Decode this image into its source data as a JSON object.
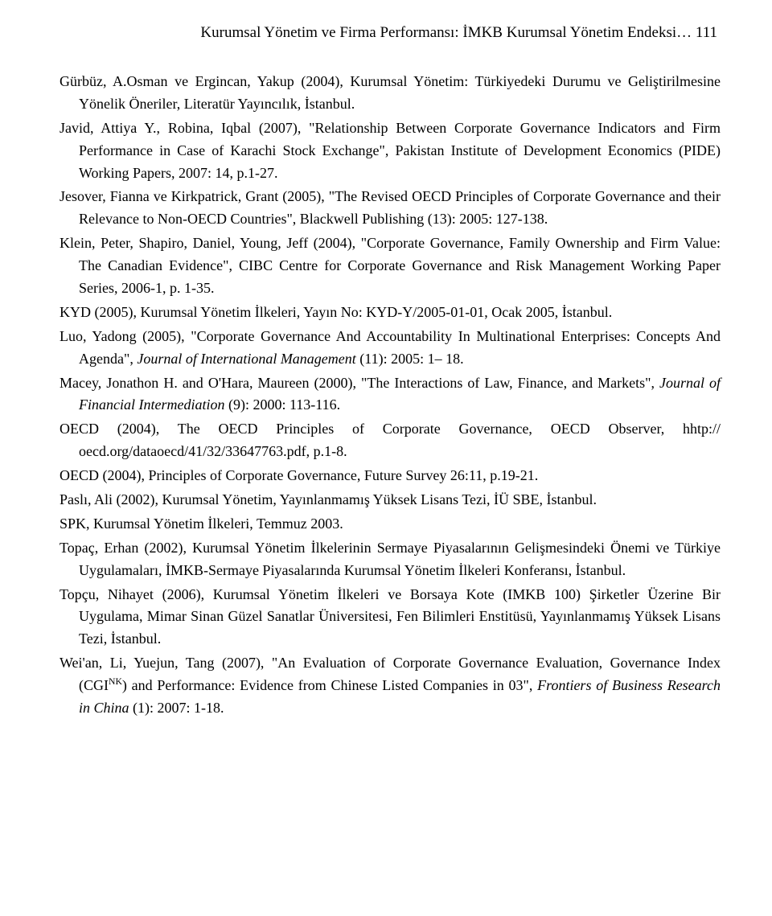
{
  "header": "Kurumsal Yönetim ve Firma Performansı: İMKB Kurumsal Yönetim Endeksi… 111",
  "refs": [
    {
      "pre": "Gürbüz, A.Osman ve Ergincan, Yakup (2004), Kurumsal Yönetim: Türkiyedeki Durumu ve Geliştirilmesine Yönelik Öneriler, Literatür Yayıncılık, İstanbul."
    },
    {
      "pre": "Javid, Attiya Y., Robina, Iqbal (2007), \"Relationship Between Corporate Governance Indicators and Firm Performance in Case of Karachi Stock Exchange\", Pakistan Institute of Development Economics (PIDE) Working Papers, 2007: 14, p.1-27."
    },
    {
      "pre": "Jesover, Fianna ve Kirkpatrick, Grant (2005), \"The Revised OECD Principles of Corporate Governance and their Relevance to Non-OECD Countries\", Blackwell Publishing (13): 2005: 127-138."
    },
    {
      "pre": "Klein, Peter, Shapiro, Daniel, Young, Jeff (2004), \"Corporate Governance, Family Ownership and Firm Value: The Canadian Evidence\", CIBC Centre for Corporate Governance and Risk Management Working Paper Series, 2006-1, p. 1-35."
    },
    {
      "pre": "KYD (2005), Kurumsal Yönetim İlkeleri, Yayın No: KYD-Y/2005-01-01, Ocak 2005, İstanbul."
    },
    {
      "pre": "Luo, Yadong (2005), \"Corporate Governance And Accountability In Multinational Enterprises: Concepts And Agenda\", ",
      "italic": "Journal of International Management",
      "post": " (11): 2005: 1– 18."
    },
    {
      "pre": "Macey, Jonathon H. and O'Hara, Maureen (2000), \"The Interactions of Law, Finance, and Markets\", ",
      "italic": "Journal of Financial Intermediation",
      "post": " (9): 2000: 113-116."
    },
    {
      "pre": "OECD (2004), The OECD Principles of Corporate Governance, OECD Observer, hhtp:// oecd.org/dataoecd/41/32/33647763.pdf, p.1-8."
    },
    {
      "pre": "OECD (2004), Principles of Corporate Governance, Future Survey 26:11, p.19-21."
    },
    {
      "pre": "Paslı, Ali (2002), Kurumsal Yönetim, Yayınlanmamış Yüksek Lisans Tezi, İÜ SBE, İstanbul."
    },
    {
      "pre": "SPK, Kurumsal Yönetim İlkeleri, Temmuz 2003."
    },
    {
      "pre": "Topaç, Erhan (2002), Kurumsal Yönetim İlkelerinin Sermaye Piyasalarının Gelişmesindeki Önemi ve Türkiye Uygulamaları, İMKB-Sermaye Piyasalarında Kurumsal Yönetim İlkeleri Konferansı, İstanbul."
    },
    {
      "pre": "Topçu, Nihayet (2006), Kurumsal Yönetim İlkeleri ve Borsaya Kote (IMKB 100) Şirketler Üzerine Bir Uygulama,  Mimar Sinan Güzel Sanatlar Üniversitesi, Fen Bilimleri Enstitüsü, Yayınlanmamış Yüksek Lisans Tezi, İstanbul."
    },
    {
      "pre": "Wei'an, Li, Yuejun, Tang (2007), \"An Evaluation of Corporate Governance Evaluation, Governance Index (CGI",
      "sup": "NK",
      "mid": ") and Performance: Evidence from Chinese Listed Companies in 03\", ",
      "italic": "Frontiers of Business Research in China",
      "post": " (1): 2007: 1-18."
    }
  ]
}
